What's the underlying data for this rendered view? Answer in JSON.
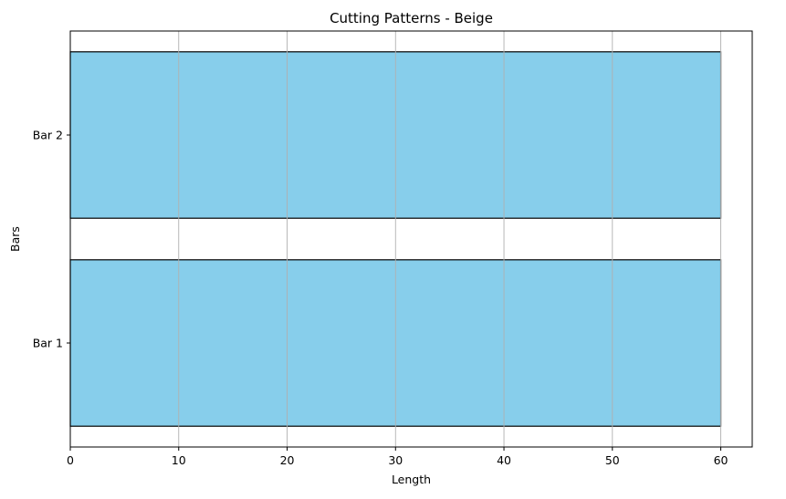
{
  "chart_data": {
    "type": "bar",
    "orientation": "horizontal",
    "title": "Cutting Patterns - Beige",
    "xlabel": "Length",
    "ylabel": "Bars",
    "categories": [
      "Bar 1",
      "Bar 2"
    ],
    "values": [
      60,
      60
    ],
    "xlim": [
      0,
      62.9
    ],
    "xticks": [
      0,
      10,
      20,
      30,
      40,
      50,
      60
    ],
    "grid": "x",
    "bar_color": "#87CEEB",
    "edge_color": "#000000",
    "grid_color": "#b0b0b0"
  }
}
